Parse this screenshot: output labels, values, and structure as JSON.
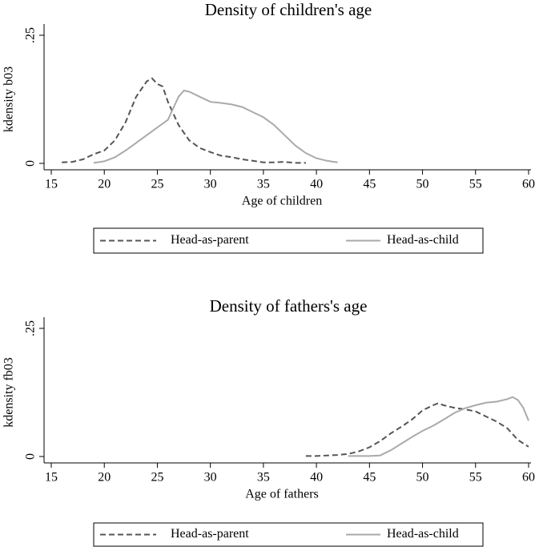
{
  "chart_data": [
    {
      "type": "line",
      "title": "Density of children's age",
      "xlabel": "Age of children",
      "ylabel": "kdensity b03",
      "xlim": [
        15,
        60
      ],
      "xticks": [
        15,
        20,
        25,
        30,
        35,
        40,
        45,
        50,
        55,
        60
      ],
      "ylim": [
        0,
        0.25
      ],
      "yticks": [
        0,
        {
          "value": 0.25,
          "label": ".25"
        }
      ],
      "legend": "bottom",
      "series": [
        {
          "name": "Head-as-parent",
          "color": "#555555",
          "linestyle": "dashed",
          "x": [
            16,
            17,
            18,
            19,
            20,
            21,
            22,
            23,
            24,
            24.5,
            25,
            25.5,
            26,
            27,
            28,
            29,
            30,
            31,
            32,
            33,
            34,
            35,
            36,
            37,
            38,
            39
          ],
          "values": [
            0.002,
            0.003,
            0.008,
            0.018,
            0.025,
            0.045,
            0.08,
            0.13,
            0.16,
            0.166,
            0.155,
            0.15,
            0.12,
            0.075,
            0.045,
            0.03,
            0.022,
            0.015,
            0.012,
            0.008,
            0.005,
            0.002,
            0.002,
            0.003,
            0.001,
            0.001
          ]
        },
        {
          "name": "Head-as-child",
          "color": "#aaaaaa",
          "linestyle": "solid",
          "x": [
            19,
            20,
            21,
            22,
            23,
            24,
            25,
            26,
            27,
            27.5,
            28,
            29,
            30,
            31,
            32,
            33,
            34,
            35,
            36,
            37,
            38,
            39,
            40,
            41,
            42
          ],
          "values": [
            0.001,
            0.004,
            0.012,
            0.025,
            0.04,
            0.055,
            0.07,
            0.085,
            0.13,
            0.142,
            0.14,
            0.13,
            0.12,
            0.118,
            0.115,
            0.11,
            0.1,
            0.09,
            0.075,
            0.055,
            0.035,
            0.02,
            0.01,
            0.005,
            0.002
          ]
        }
      ]
    },
    {
      "type": "line",
      "title": "Density of fathers's age",
      "xlabel": "Age of fathers",
      "ylabel": "kdensity fb03",
      "xlim": [
        15,
        60
      ],
      "xticks": [
        15,
        20,
        25,
        30,
        35,
        40,
        45,
        50,
        55,
        60
      ],
      "ylim": [
        0,
        0.25
      ],
      "yticks": [
        0,
        {
          "value": 0.25,
          "label": ".25"
        }
      ],
      "legend": "bottom",
      "series": [
        {
          "name": "Head-as-parent",
          "color": "#555555",
          "linestyle": "dashed",
          "x": [
            39,
            40,
            41,
            42,
            43,
            44,
            45,
            46,
            47,
            48,
            49,
            50,
            51,
            51.5,
            52,
            53,
            54,
            55,
            56,
            57,
            58,
            59,
            60
          ],
          "values": [
            0.001,
            0.001,
            0.002,
            0.003,
            0.005,
            0.01,
            0.018,
            0.03,
            0.045,
            0.058,
            0.072,
            0.09,
            0.1,
            0.104,
            0.1,
            0.095,
            0.092,
            0.088,
            0.078,
            0.068,
            0.055,
            0.032,
            0.019
          ]
        },
        {
          "name": "Head-as-child",
          "color": "#aaaaaa",
          "linestyle": "solid",
          "x": [
            43,
            44,
            45,
            46,
            47,
            48,
            49,
            50,
            51,
            52,
            53,
            54,
            55,
            56,
            57,
            58,
            58.5,
            59,
            59.5,
            60
          ],
          "values": [
            0.001,
            0.001,
            0.001,
            0.002,
            0.012,
            0.025,
            0.038,
            0.05,
            0.06,
            0.072,
            0.085,
            0.094,
            0.1,
            0.105,
            0.107,
            0.112,
            0.116,
            0.11,
            0.095,
            0.07
          ]
        }
      ]
    }
  ]
}
